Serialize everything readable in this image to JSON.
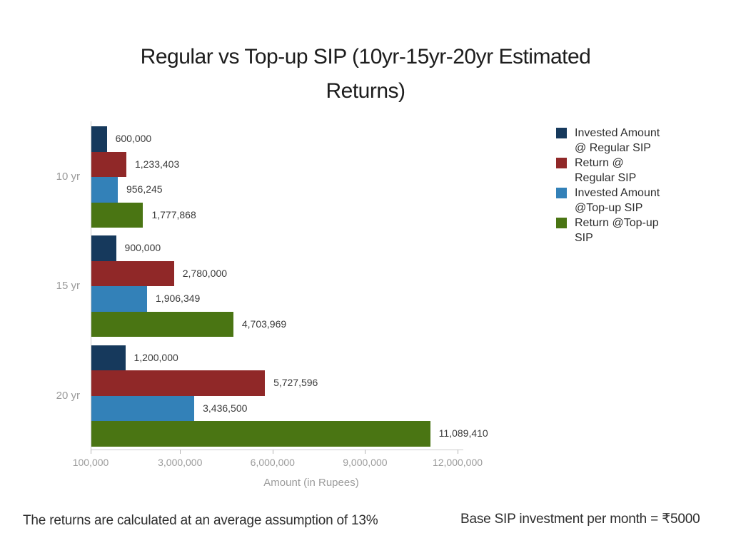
{
  "title": "Regular vs Top-up SIP (10yr-15yr-20yr Estimated\nReturns)",
  "footer": {
    "left_note": "The returns are calculated at an average assumption of 13%",
    "right_note": "Base SIP investment per month = ₹5000"
  },
  "chart_data": {
    "type": "bar",
    "orientation": "horizontal",
    "title": "Regular vs Top-up SIP (10yr-15yr-20yr Estimated Returns)",
    "xlabel": "Amount (in Rupees)",
    "grid": false,
    "legend_position": "right",
    "categories": [
      "10 yr",
      "15 yr",
      "20 yr"
    ],
    "xlim": [
      100000,
      12000000
    ],
    "x_ticks": [
      100000,
      3000000,
      6000000,
      9000000,
      12000000
    ],
    "x_tick_labels": [
      "100,000",
      "3,000,000",
      "6,000,000",
      "9,000,000",
      "12,000,000"
    ],
    "series": [
      {
        "name": "Invested Amount\n@ Regular SIP",
        "color": "#16395C",
        "values": [
          600000,
          900000,
          1200000
        ],
        "value_labels": [
          "600,000",
          "900,000",
          "1,200,000"
        ]
      },
      {
        "name": "Return @\nRegular SIP",
        "color": "#902828",
        "values": [
          1233403,
          2780000,
          5727596
        ],
        "value_labels": [
          "1,233,403",
          "2,780,000",
          "5,727,596"
        ]
      },
      {
        "name": "Invested Amount\n@Top-up SIP",
        "color": "#3381B8",
        "values": [
          956245,
          1906349,
          3436500
        ],
        "value_labels": [
          "956,245",
          "1,906,349",
          "3,436,500"
        ]
      },
      {
        "name": "Return @Top-up\nSIP",
        "color": "#4A7513",
        "values": [
          1777868,
          4703969,
          11089410
        ],
        "value_labels": [
          "1,777,868",
          "4,703,969",
          "11,089,410"
        ]
      }
    ]
  }
}
